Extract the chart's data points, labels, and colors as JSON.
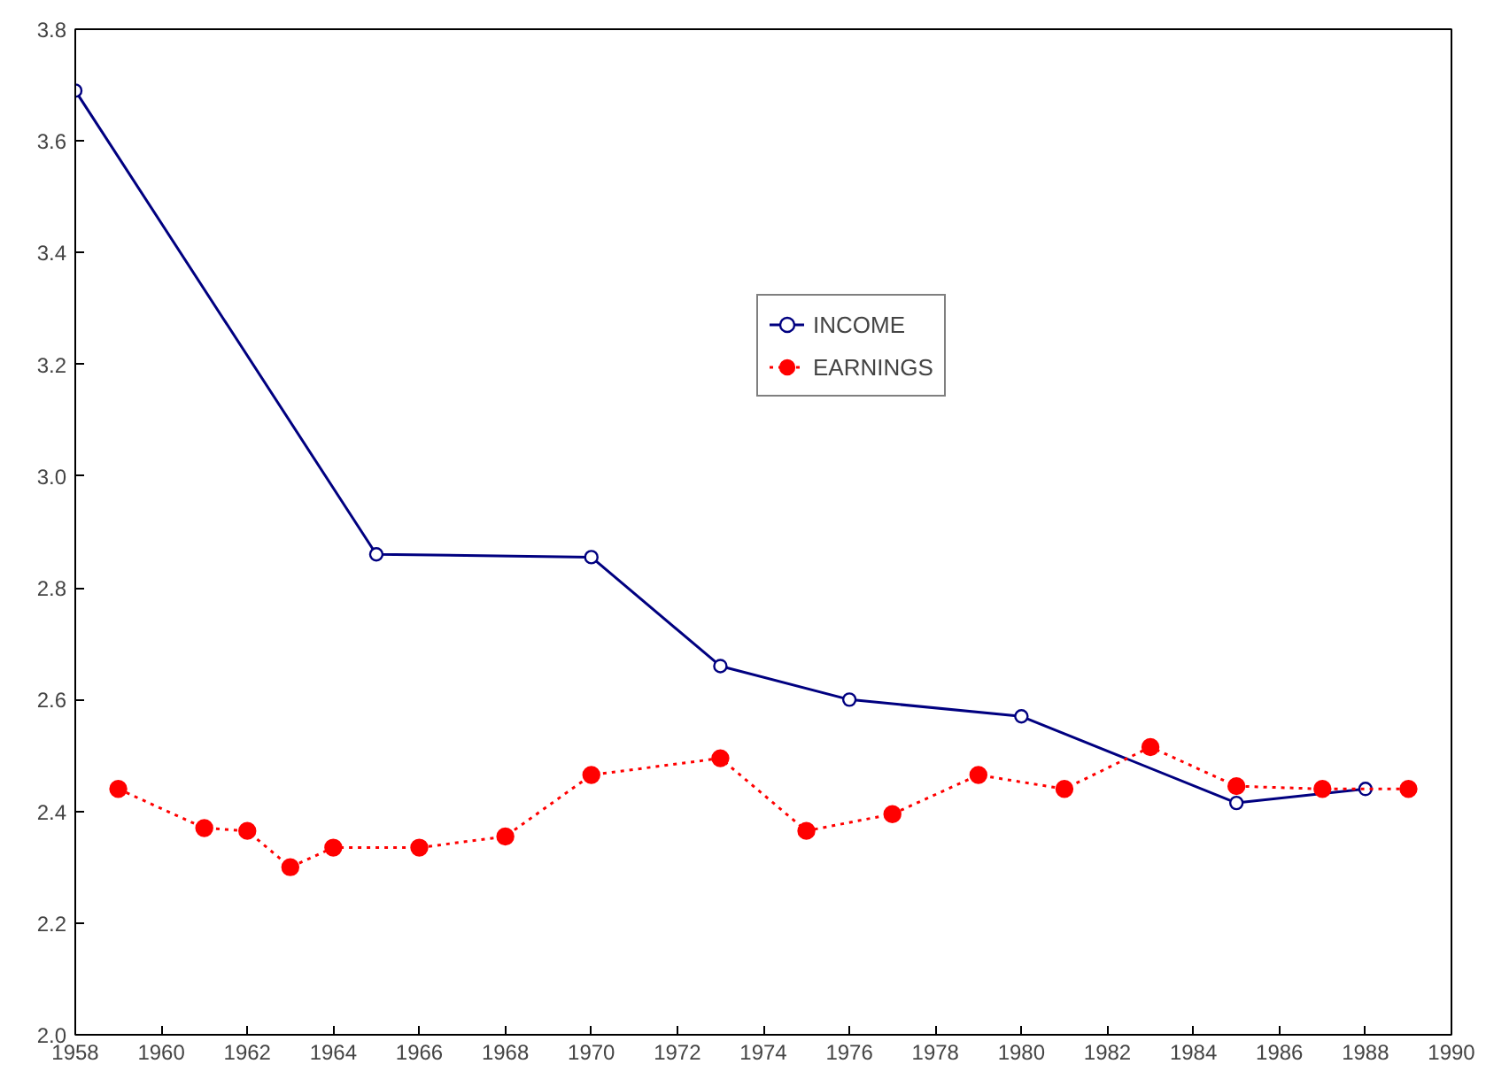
{
  "chart_data": {
    "type": "line",
    "x": [
      1958,
      1965,
      1970,
      1973,
      1976,
      1980,
      1985,
      1988
    ],
    "series": [
      {
        "name": "INCOME",
        "color": "#000080",
        "marker": "circle",
        "line_style": "solid",
        "values": [
          3.69,
          2.86,
          2.855,
          2.66,
          2.6,
          2.57,
          2.415,
          2.44
        ]
      },
      {
        "name": "EARNINGS",
        "color": "#ff0000",
        "marker": "circle",
        "line_style": "dotted",
        "x": [
          1959,
          1961,
          1962,
          1963,
          1964,
          1966,
          1968,
          1970,
          1973,
          1975,
          1977,
          1979,
          1981,
          1983,
          1985,
          1987,
          1989
        ],
        "values": [
          2.44,
          2.37,
          2.365,
          2.3,
          2.335,
          2.335,
          2.355,
          2.465,
          2.495,
          2.365,
          2.395,
          2.465,
          2.44,
          2.515,
          2.445,
          2.44,
          2.44
        ]
      }
    ],
    "xlim": [
      1958,
      1990
    ],
    "xticks": [
      1958,
      1960,
      1962,
      1964,
      1966,
      1968,
      1970,
      1972,
      1974,
      1976,
      1978,
      1980,
      1982,
      1984,
      1986,
      1988,
      1990
    ],
    "ylim": [
      2.0,
      3.8
    ],
    "yticks": [
      {
        "value": 2.0,
        "label": "2.0"
      },
      {
        "value": 2.2,
        "label": "2.2"
      },
      {
        "value": 2.4,
        "label": "2.4"
      },
      {
        "value": 2.6,
        "label": "2.6"
      },
      {
        "value": 2.8,
        "label": "2.8"
      },
      {
        "value": 3.0,
        "label": "3.0"
      },
      {
        "value": 3.2,
        "label": "3.2"
      },
      {
        "value": 3.4,
        "label": "3.4"
      },
      {
        "value": 3.6,
        "label": "3.6"
      },
      {
        "value": 3.8,
        "label": "3.8"
      }
    ],
    "grid": false,
    "legend": "top"
  }
}
